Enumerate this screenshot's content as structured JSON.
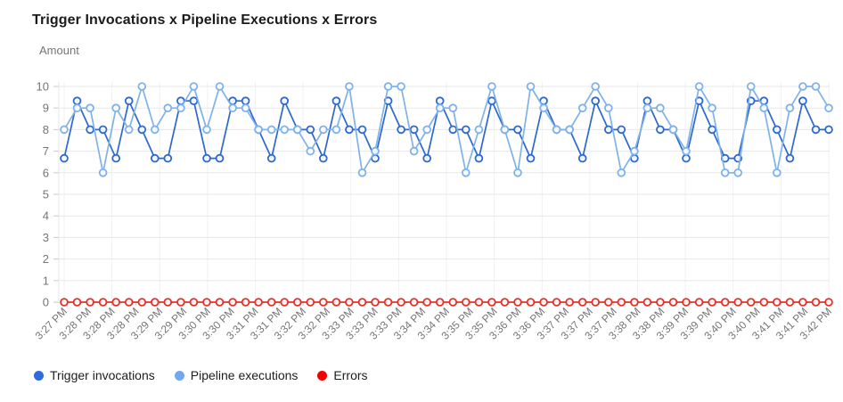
{
  "title": "Trigger Invocations x Pipeline Executions x Errors",
  "y_axis_title": "Amount",
  "chart_data": {
    "type": "line",
    "title": "Trigger Invocations x Pipeline Executions x Errors",
    "ylabel": "Amount",
    "ylim": [
      0,
      10
    ],
    "y_ticks": [
      0,
      1,
      2,
      3,
      4,
      5,
      6,
      7,
      8,
      9,
      10
    ],
    "grid": true,
    "legend_position": "bottom",
    "x_tick_labels": [
      "3:27 PM",
      "3:28 PM",
      "3:28 PM",
      "3:28 PM",
      "3:29 PM",
      "3:29 PM",
      "3:30 PM",
      "3:30 PM",
      "3:31 PM",
      "3:31 PM",
      "3:32 PM",
      "3:32 PM",
      "3:33 PM",
      "3:33 PM",
      "3:33 PM",
      "3:34 PM",
      "3:34 PM",
      "3:35 PM",
      "3:35 PM",
      "3:36 PM",
      "3:36 PM",
      "3:37 PM",
      "3:37 PM",
      "3:37 PM",
      "3:38 PM",
      "3:38 PM",
      "3:39 PM",
      "3:39 PM",
      "3:40 PM",
      "3:40 PM",
      "3:41 PM",
      "3:41 PM",
      "3:42 PM"
    ],
    "series": [
      {
        "name": "Trigger invocations",
        "color": "#2c68cd",
        "legend_color": "#2e6be0",
        "marker": "open-circle",
        "values": [
          6.67,
          9.33,
          8,
          8,
          6.67,
          9.33,
          8,
          6.67,
          6.67,
          9.33,
          9.33,
          6.67,
          6.67,
          9.33,
          9.33,
          8,
          6.67,
          9.33,
          8,
          8,
          6.67,
          9.33,
          8,
          8,
          6.67,
          9.33,
          8,
          8,
          6.67,
          9.33,
          8,
          8,
          6.67,
          9.33,
          8,
          8,
          6.67,
          9.33,
          8,
          8,
          6.67,
          9.33,
          8,
          8,
          6.67,
          9.33,
          8,
          8,
          6.67,
          9.33,
          8,
          6.67,
          6.67,
          9.33,
          9.33,
          8,
          6.67,
          9.33,
          8,
          8
        ]
      },
      {
        "name": "Pipeline executions",
        "color": "#7fb2e9",
        "legend_color": "#74a7f0",
        "marker": "open-circle",
        "values": [
          8,
          9,
          9,
          6,
          9,
          8,
          10,
          8,
          9,
          9,
          10,
          8,
          10,
          9,
          9,
          8,
          8,
          8,
          8,
          7,
          8,
          8,
          10,
          6,
          7,
          10,
          10,
          7,
          8,
          9,
          9,
          6,
          8,
          10,
          8,
          6,
          10,
          9,
          8,
          8,
          9,
          10,
          9,
          6,
          7,
          9,
          9,
          8,
          7,
          10,
          9,
          6,
          6,
          10,
          9,
          6,
          9,
          10,
          10,
          9
        ]
      },
      {
        "name": "Errors",
        "color": "#e0322b",
        "legend_color": "#f50000",
        "marker": "open-circle",
        "values": [
          0,
          0,
          0,
          0,
          0,
          0,
          0,
          0,
          0,
          0,
          0,
          0,
          0,
          0,
          0,
          0,
          0,
          0,
          0,
          0,
          0,
          0,
          0,
          0,
          0,
          0,
          0,
          0,
          0,
          0,
          0,
          0,
          0,
          0,
          0,
          0,
          0,
          0,
          0,
          0,
          0,
          0,
          0,
          0,
          0,
          0,
          0,
          0,
          0,
          0,
          0,
          0,
          0,
          0,
          0,
          0,
          0,
          0,
          0,
          0
        ]
      }
    ]
  }
}
